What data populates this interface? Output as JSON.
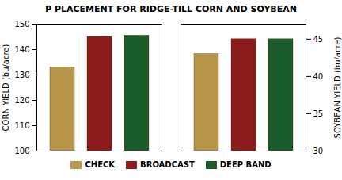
{
  "chart_data": [
    {
      "type": "bar",
      "title": "P PLACEMENT FOR RIDGE-TILL CORN AND SOYBEAN",
      "categories": [
        "CHECK",
        "BROADCAST",
        "DEEP BAND"
      ],
      "values": [
        133,
        145,
        145.5
      ],
      "colors": [
        "#B8964A",
        "#8B1A1A",
        "#1A5C2A"
      ],
      "ylabel": "CORN YIELD (bu/acre)",
      "ylim": [
        100,
        150
      ],
      "yticks": [
        100,
        110,
        120,
        130,
        140,
        150
      ],
      "grid": false,
      "tick_labels": "y",
      "legend": "bottom"
    },
    {
      "type": "bar",
      "categories": [
        "CHECK",
        "BROADCAST",
        "DEEP BAND"
      ],
      "values": [
        43,
        45,
        45
      ],
      "colors": [
        "#B8964A",
        "#8B1A1A",
        "#1A5C2A"
      ],
      "ylabel": "SOYBEAN YIELD (bu/acre)",
      "ylim": [
        30,
        47
      ],
      "yticks": [
        30,
        35,
        40,
        45
      ],
      "grid": false,
      "tick_labels": "y"
    }
  ]
}
